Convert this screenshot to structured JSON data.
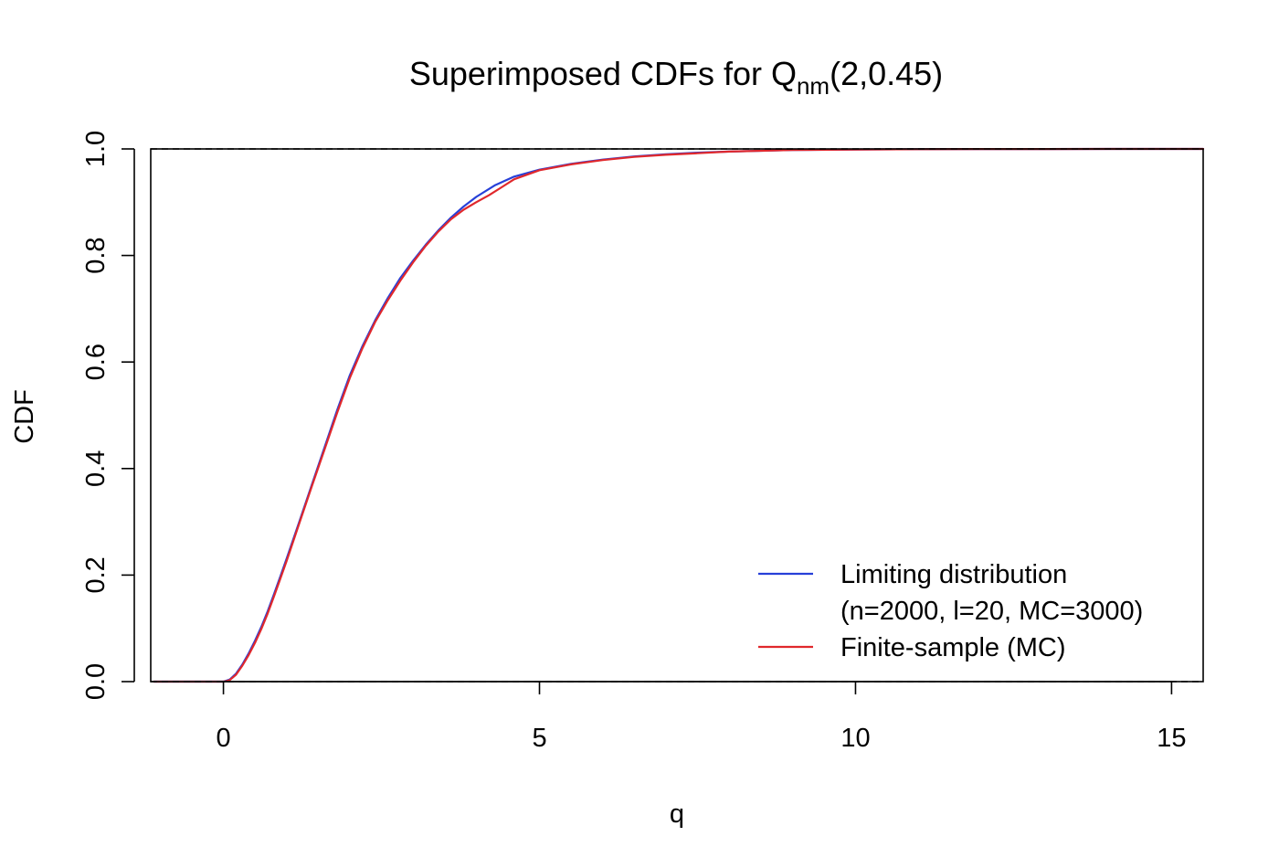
{
  "chart_data": {
    "type": "line",
    "title": {
      "main": "Superimposed CDFs for Q",
      "subscript": "nm",
      "suffix": "(2,0.45)"
    },
    "xlabel": "q",
    "ylabel": "CDF",
    "xlim": [
      -1.15,
      15.5
    ],
    "ylim": [
      0,
      1
    ],
    "x_ticks": [
      0,
      5,
      10,
      15
    ],
    "x_tick_labels": [
      "0",
      "5",
      "10",
      "15"
    ],
    "y_ticks": [
      0,
      0.2,
      0.4,
      0.6,
      0.8,
      1
    ],
    "y_tick_labels": [
      "0.0",
      "0.2",
      "0.4",
      "0.6",
      "0.8",
      "1.0"
    ],
    "reference_lines": [
      0,
      1
    ],
    "grid": false,
    "legend": {
      "position": "bottom-right",
      "entries": [
        {
          "lines": [
            "Limiting distribution",
            "(n=2000, l=20, MC=3000)"
          ],
          "color": "#2740d8"
        },
        {
          "lines": [
            "Finite-sample (MC)"
          ],
          "color": "#e0282c"
        }
      ]
    },
    "series": [
      {
        "name": "Limiting distribution",
        "color": "#2740d8",
        "x": [
          -1.1,
          0.0,
          0.1,
          0.2,
          0.3,
          0.4,
          0.5,
          0.6,
          0.7,
          0.8,
          0.9,
          1.0,
          1.2,
          1.4,
          1.6,
          1.8,
          2.0,
          2.2,
          2.4,
          2.6,
          2.8,
          3.0,
          3.2,
          3.4,
          3.6,
          3.8,
          4.0,
          4.3,
          4.6,
          5.0,
          5.5,
          6.0,
          6.5,
          7.0,
          7.5,
          8.0,
          9.0,
          10.0,
          11.0,
          12.0,
          13.0,
          14.0,
          15.5
        ],
        "y": [
          0.0,
          0.0,
          0.004,
          0.015,
          0.032,
          0.053,
          0.077,
          0.103,
          0.132,
          0.164,
          0.197,
          0.231,
          0.3,
          0.37,
          0.44,
          0.51,
          0.575,
          0.63,
          0.678,
          0.72,
          0.758,
          0.79,
          0.82,
          0.847,
          0.871,
          0.892,
          0.91,
          0.932,
          0.948,
          0.961,
          0.972,
          0.98,
          0.986,
          0.99,
          0.993,
          0.995,
          0.998,
          0.999,
          0.9995,
          0.9998,
          0.9999,
          1.0,
          1.0
        ]
      },
      {
        "name": "Finite-sample (MC)",
        "color": "#e0282c",
        "x": [
          -1.1,
          0.0,
          0.05,
          0.1,
          0.2,
          0.3,
          0.4,
          0.5,
          0.6,
          0.7,
          0.8,
          0.9,
          1.0,
          1.2,
          1.4,
          1.6,
          1.8,
          2.0,
          2.2,
          2.4,
          2.6,
          2.8,
          3.0,
          3.2,
          3.4,
          3.6,
          3.8,
          4.0,
          4.2,
          4.4,
          4.6,
          5.0,
          5.5,
          6.0,
          6.5,
          7.0,
          7.5,
          8.0,
          9.0,
          10.0,
          11.0,
          12.0,
          13.0,
          14.0,
          15.5
        ],
        "y": [
          0.0,
          0.0,
          0.001,
          0.003,
          0.013,
          0.03,
          0.05,
          0.073,
          0.099,
          0.128,
          0.16,
          0.193,
          0.227,
          0.297,
          0.367,
          0.436,
          0.505,
          0.57,
          0.626,
          0.675,
          0.716,
          0.753,
          0.787,
          0.818,
          0.845,
          0.868,
          0.886,
          0.9,
          0.913,
          0.928,
          0.943,
          0.96,
          0.971,
          0.979,
          0.985,
          0.989,
          0.992,
          0.995,
          0.998,
          0.999,
          0.9995,
          0.9998,
          0.9999,
          1.0,
          1.0
        ]
      }
    ]
  }
}
